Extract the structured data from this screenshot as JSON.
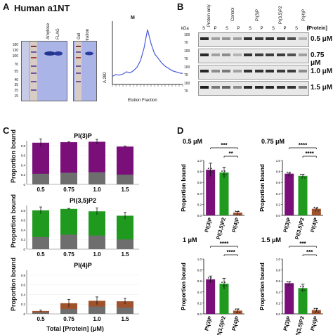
{
  "panelA": {
    "letter": "A",
    "title": "Human a1NT",
    "gel1_headers": [
      "Amylose",
      "FLAG"
    ],
    "gel2_headers": [
      "Gel",
      "filtration"
    ],
    "gel1_ladder": [
      "180",
      "130",
      "100",
      "70",
      "55",
      "40",
      "35",
      "25",
      "15"
    ],
    "gel2_ladder": [
      "180",
      "130",
      "100",
      "70",
      "55",
      "40",
      "35",
      "25",
      "15"
    ],
    "chromatogram": {
      "ylabel": "A 280",
      "xlabel": "Elution Fraction",
      "peak_label": "M",
      "x": [
        0,
        1,
        2,
        3,
        4,
        5,
        6,
        7,
        8,
        9,
        10,
        11,
        12,
        13,
        14,
        15,
        16,
        17,
        18,
        19,
        20
      ],
      "y": [
        0.12,
        0.15,
        0.14,
        0.16,
        0.2,
        0.18,
        0.22,
        0.28,
        0.4,
        0.62,
        0.95,
        0.7,
        0.52,
        0.44,
        0.36,
        0.3,
        0.26,
        0.22,
        0.2,
        0.18,
        0.17
      ]
    }
  },
  "panelB": {
    "letter": "B",
    "column_headers": [
      "Protein only",
      "Control",
      "PI(3)P",
      "PI(3,5)P2",
      "PI(4)P"
    ],
    "lane_labels": [
      "S",
      "P",
      "S",
      "P",
      "S",
      "P",
      "S",
      "P",
      "S",
      "P"
    ],
    "protein_header": "[Protein]",
    "kda": "kDa",
    "rows": [
      {
        "conc": "0.5 μM",
        "markers": [
          "100",
          "70"
        ]
      },
      {
        "conc": "0.75 μM",
        "markers": [
          "100",
          "70"
        ]
      },
      {
        "conc": "1.0 μM",
        "markers": [
          "100",
          "70"
        ]
      },
      {
        "conc": "1.5 μM",
        "markers": [
          "100",
          "70"
        ]
      }
    ]
  },
  "panelC": {
    "letter": "C",
    "ylabel": "Proportion bound",
    "xlabel": "Total [Protein] (μM)",
    "categories": [
      "0.5",
      "0.75",
      "1.0",
      "1.5"
    ],
    "charts": [
      {
        "title": "PI(3)P",
        "color": "#7a0f7a",
        "yticks": [
          "0",
          "0.2",
          "0.4",
          "0.6",
          "0.8"
        ],
        "bound": [
          0.86,
          0.87,
          0.88,
          0.78
        ],
        "unbound": [
          0.22,
          0.24,
          0.25,
          0.2
        ],
        "err": [
          0.08,
          0.01,
          0.05,
          0.01
        ]
      },
      {
        "title": "PI(3,5)P2",
        "color": "#1f9a1f",
        "yticks": [
          "0",
          "0.2",
          "0.4",
          "0.6",
          "0.8"
        ],
        "bound": [
          0.8,
          0.83,
          0.78,
          0.69
        ],
        "unbound": [
          0.25,
          0.3,
          0.28,
          0.2
        ],
        "err": [
          0.07,
          0.01,
          0.07,
          0.07
        ]
      },
      {
        "title": "PI(4)P",
        "color": "#a0522d",
        "yticks": [
          "0",
          "0.2",
          "0.4",
          "0.6",
          "0.8"
        ],
        "bound": [
          0.06,
          0.22,
          0.27,
          0.26
        ],
        "unbound": [
          0.03,
          0.1,
          0.15,
          0.13
        ],
        "err": [
          0.02,
          0.08,
          0.08,
          0.06
        ]
      }
    ]
  },
  "panelD": {
    "letter": "D",
    "ylabel": "Proportion bound",
    "categories": [
      "PI(3)P",
      "PI(3,5)P2",
      "PI(4)P"
    ],
    "colors": [
      "#7a0f7a",
      "#1f9a1f",
      "#a0522d"
    ],
    "charts": [
      {
        "title": "0.5 μM",
        "values": [
          0.83,
          0.78,
          0.05
        ],
        "err": [
          0.12,
          0.1,
          0.02
        ],
        "yticks": [
          "0.0",
          "0.2",
          "0.4",
          "0.6",
          "0.8",
          "1.0"
        ],
        "sig": [
          {
            "label": "**",
            "from": 1,
            "to": 2
          },
          {
            "label": "***",
            "from": 0,
            "to": 2
          }
        ]
      },
      {
        "title": "0.75 μM",
        "values": [
          0.76,
          0.72,
          0.12
        ],
        "err": [
          0.01,
          0.03,
          0.01
        ],
        "yticks": [
          "0.0",
          "0.2",
          "0.4",
          "0.6",
          "0.8",
          "1.0"
        ],
        "sig": [
          {
            "label": "****",
            "from": 1,
            "to": 2
          },
          {
            "label": "****",
            "from": 0,
            "to": 2
          }
        ]
      },
      {
        "title": "1 μM",
        "values": [
          0.63,
          0.55,
          0.06
        ],
        "err": [
          0.06,
          0.1,
          0.03
        ],
        "yticks": [
          "0.0",
          "0.2",
          "0.4",
          "0.6",
          "0.8",
          "1.0"
        ],
        "sig": [
          {
            "label": "****",
            "from": 1,
            "to": 2
          },
          {
            "label": "****",
            "from": 0,
            "to": 2
          }
        ]
      },
      {
        "title": "1.5 μM",
        "values": [
          0.56,
          0.47,
          0.07
        ],
        "err": [
          0.02,
          0.07,
          0.03
        ],
        "yticks": [
          "0.0",
          "0.2",
          "0.4",
          "0.6",
          "0.8",
          "1.0"
        ],
        "sig": [
          {
            "label": "***",
            "from": 1,
            "to": 2
          },
          {
            "label": "***",
            "from": 0,
            "to": 2
          }
        ]
      }
    ]
  }
}
